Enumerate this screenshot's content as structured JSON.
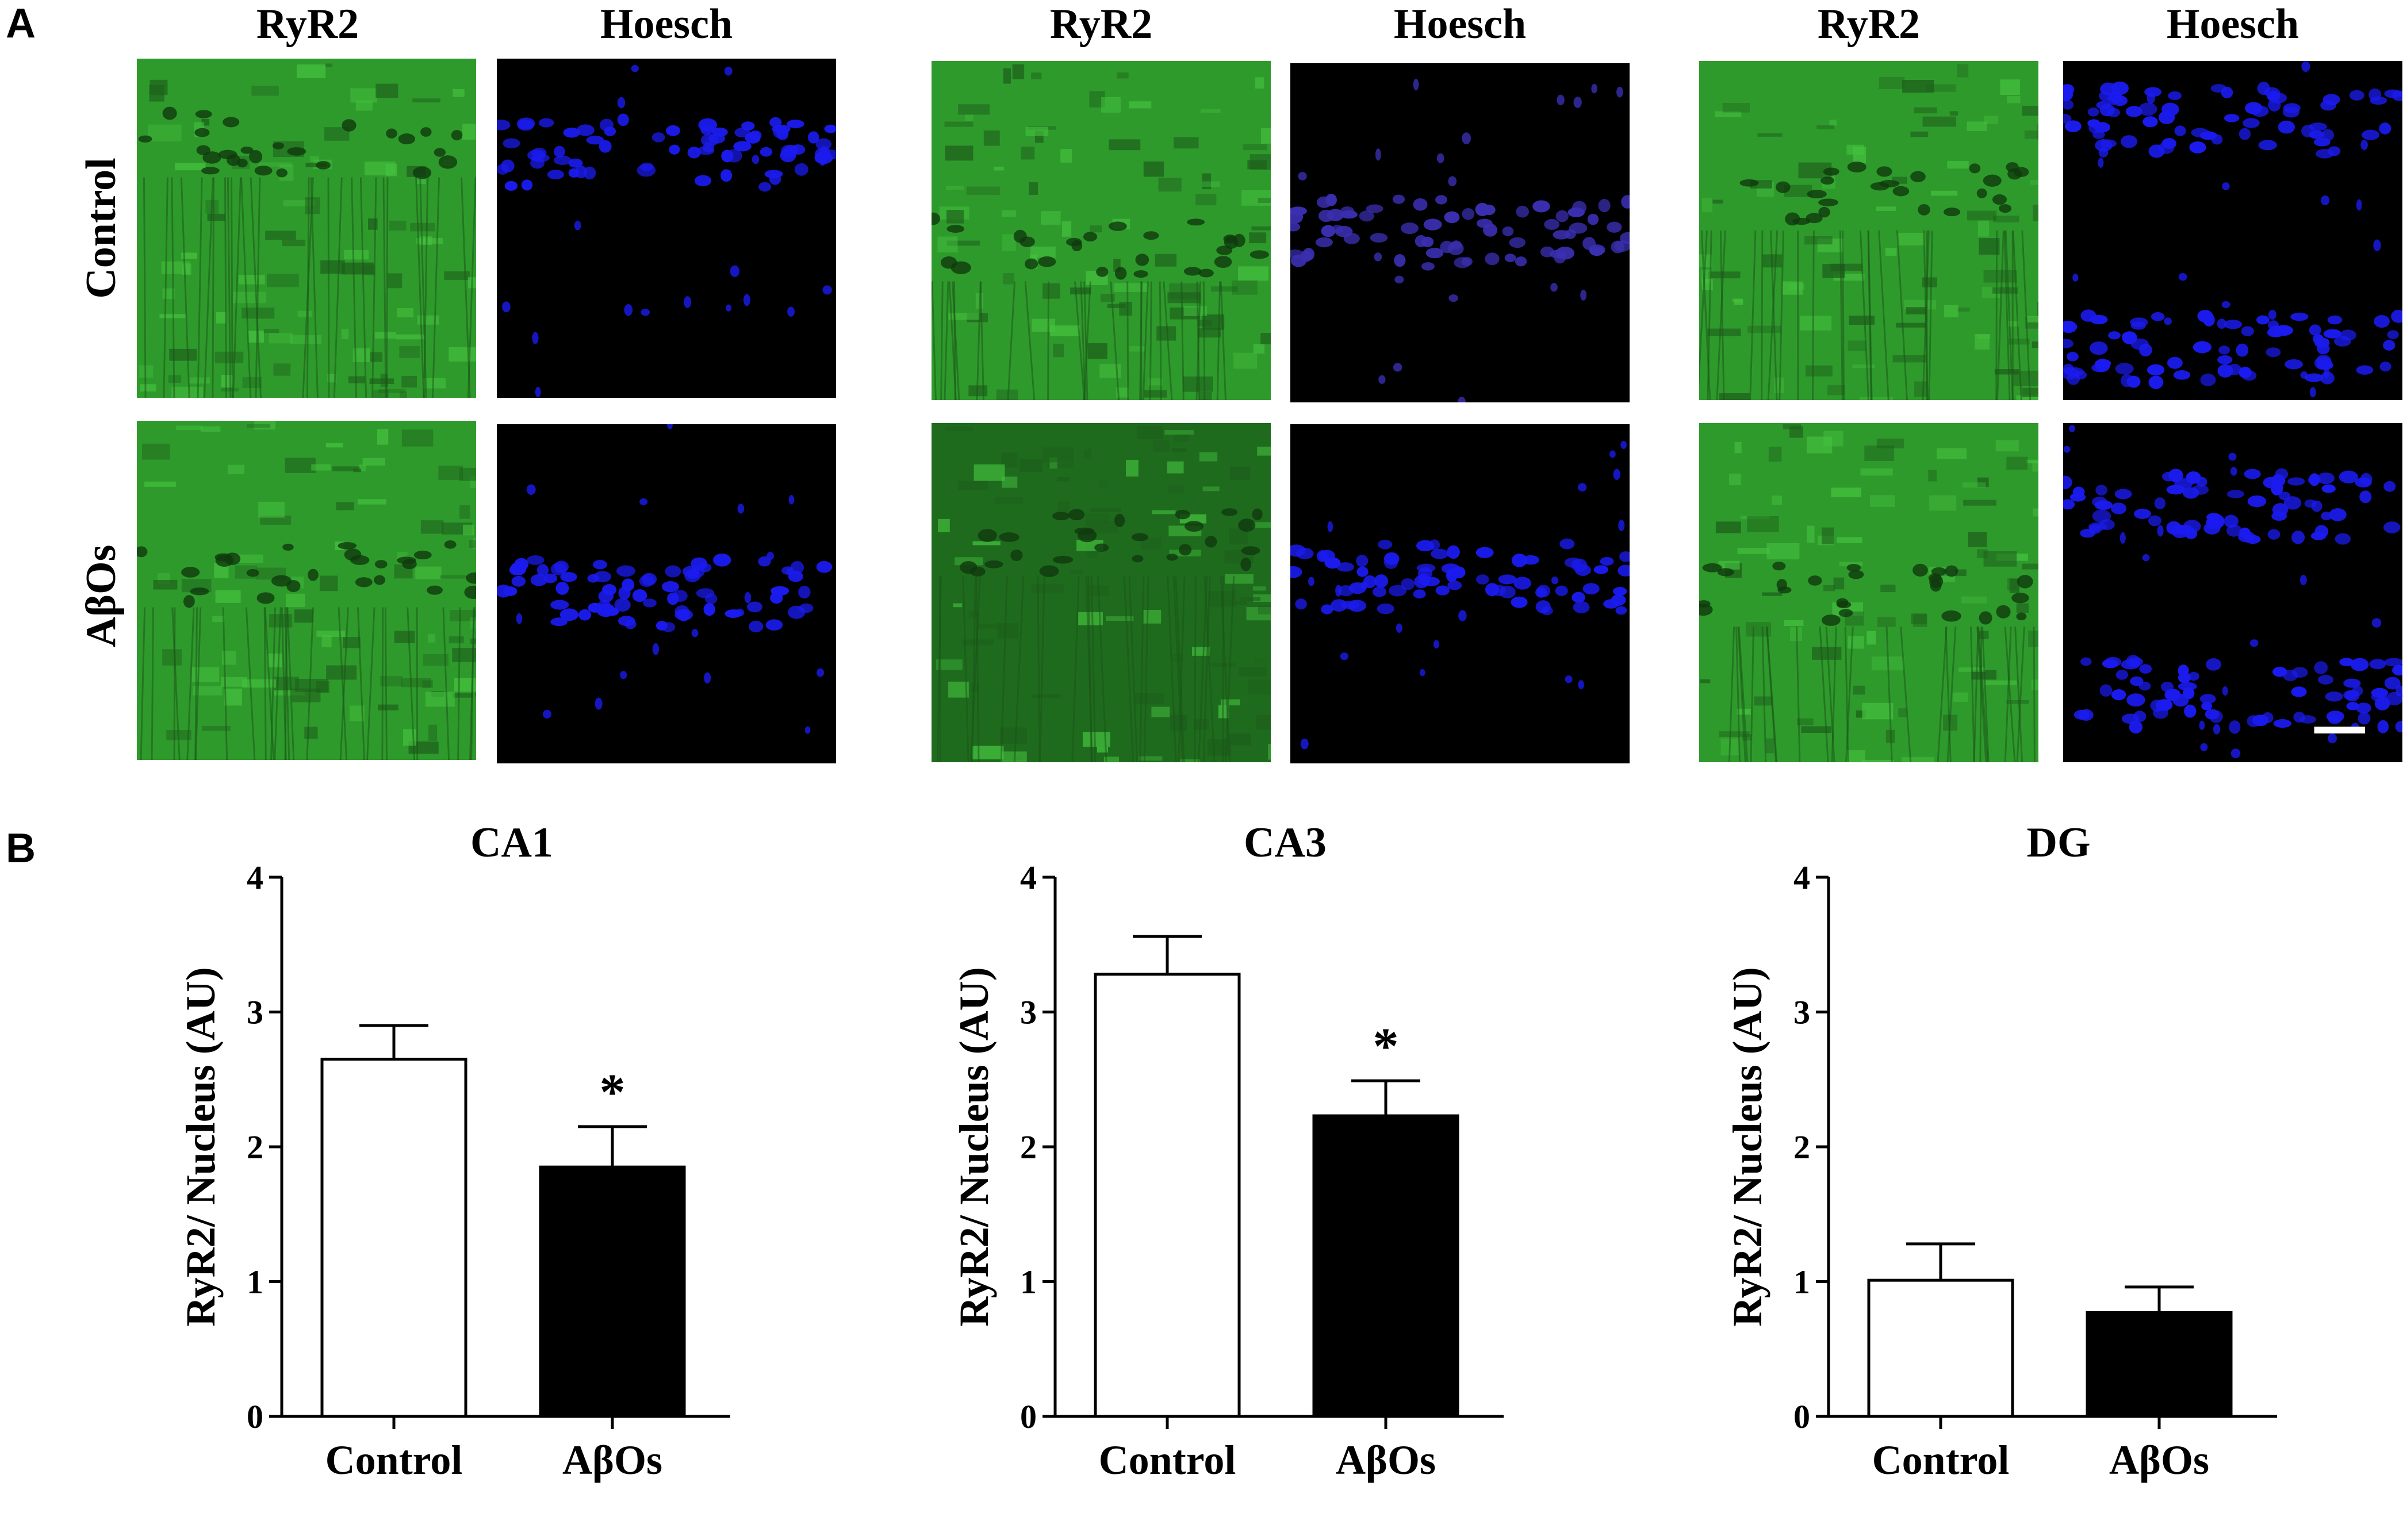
{
  "panel_a": {
    "letter": "A",
    "groups": [
      {
        "headers": [
          "RyR2",
          "Hoesch"
        ]
      },
      {
        "headers": [
          "RyR2",
          "Hoesch"
        ]
      },
      {
        "headers": [
          "RyR2",
          "Hoesch"
        ]
      }
    ],
    "rows": [
      "Control",
      "AβOs"
    ],
    "colors": {
      "ryr2": "#2f9a2c",
      "hoesch": "#1b1bf0",
      "scale_bar": "#ffffff"
    }
  },
  "panel_b": {
    "letter": "B",
    "chart_data": [
      {
        "type": "bar",
        "title": "CA1",
        "ylabel": "RyR2/ Nucleus (AU)",
        "categories": [
          "Control",
          "AβOs"
        ],
        "values": [
          2.65,
          1.85
        ],
        "errors": [
          0.25,
          0.3
        ],
        "significance": [
          "",
          "*"
        ],
        "fills": [
          "#ffffff",
          "#000000"
        ],
        "ylim": [
          0,
          4
        ],
        "yticks": [
          "0",
          "1",
          "2",
          "3",
          "4"
        ]
      },
      {
        "type": "bar",
        "title": "CA3",
        "ylabel": "RyR2/ Nucleus (AU)",
        "categories": [
          "Control",
          "AβOs"
        ],
        "values": [
          3.28,
          2.23
        ],
        "errors": [
          0.28,
          0.26
        ],
        "significance": [
          "",
          "*"
        ],
        "fills": [
          "#ffffff",
          "#000000"
        ],
        "ylim": [
          0,
          4
        ],
        "yticks": [
          "0",
          "1",
          "2",
          "3",
          "4"
        ]
      },
      {
        "type": "bar",
        "title": "DG",
        "ylabel": "RyR2/ Nucleus (AU)",
        "categories": [
          "Control",
          "AβOs"
        ],
        "values": [
          1.01,
          0.77
        ],
        "errors": [
          0.27,
          0.19
        ],
        "significance": [
          "",
          ""
        ],
        "fills": [
          "#ffffff",
          "#000000"
        ],
        "ylim": [
          0,
          4
        ],
        "yticks": [
          "0",
          "1",
          "2",
          "3",
          "4"
        ]
      }
    ]
  }
}
